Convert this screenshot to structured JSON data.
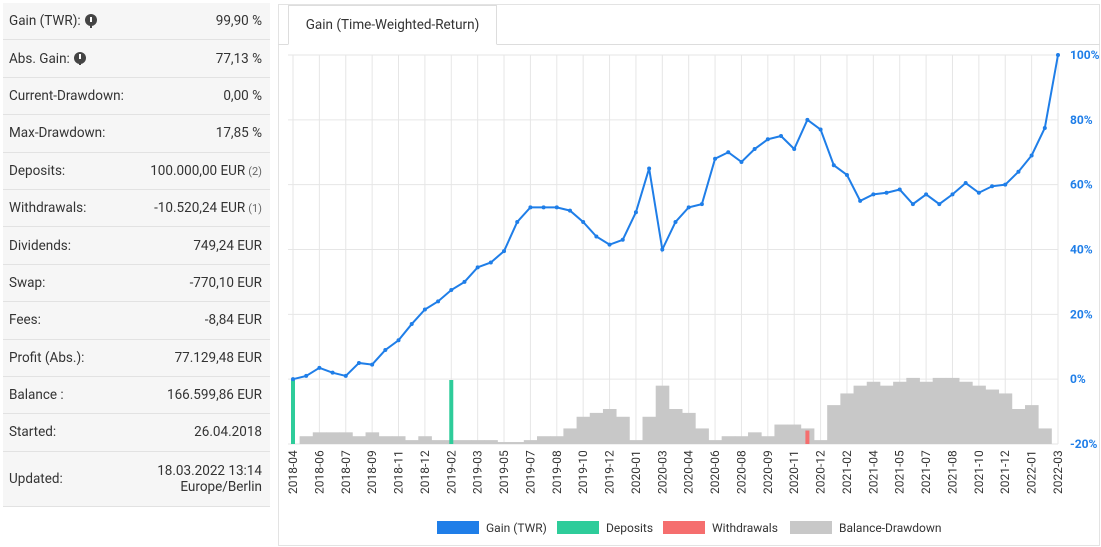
{
  "stats": [
    {
      "label": "Gain (TWR):",
      "value": "99,90 %",
      "info": true
    },
    {
      "label": "Abs. Gain:",
      "value": "77,13 %",
      "info": true
    },
    {
      "label": "Current-Drawdown:",
      "value": "0,00 %"
    },
    {
      "label": "Max-Drawdown:",
      "value": "17,85 %"
    },
    {
      "label": "Deposits:",
      "value": "100.000,00 EUR",
      "count": "(2)"
    },
    {
      "label": "Withdrawals:",
      "value": "-10.520,24 EUR",
      "count": "(1)"
    },
    {
      "label": "Dividends:",
      "value": "749,24 EUR"
    },
    {
      "label": "Swap:",
      "value": "-770,10 EUR"
    },
    {
      "label": "Fees:",
      "value": "-8,84 EUR"
    },
    {
      "label": "Profit (Abs.):",
      "value": "77.129,48 EUR"
    },
    {
      "label": "Balance :",
      "value": "166.599,86 EUR"
    },
    {
      "label": "Started:",
      "value": "26.04.2018"
    },
    {
      "label": "Updated:",
      "value": "18.03.2022 13:14",
      "timezone": "Europe/Berlin"
    }
  ],
  "chart_data": {
    "type": "line",
    "title": "Gain (Time-Weighted-Return)",
    "categories": [
      "2018-04",
      null,
      "2018-06",
      null,
      "2018-07",
      null,
      "2018-09",
      null,
      "2018-11",
      null,
      "2018-12",
      null,
      "2019-02",
      null,
      "2019-03",
      null,
      "2019-05",
      null,
      "2019-07",
      null,
      "2019-08",
      null,
      "2019-10",
      null,
      "2019-12",
      null,
      "2020-01",
      null,
      "2020-03",
      null,
      "2020-04",
      null,
      "2020-06",
      null,
      "2020-08",
      null,
      "2020-09",
      null,
      "2020-11",
      null,
      "2020-12",
      null,
      "2021-02",
      null,
      "2021-04",
      null,
      "2021-05",
      null,
      "2021-07",
      null,
      "2021-08",
      null,
      "2021-10",
      null,
      "2021-12",
      null,
      "2022-01",
      null,
      "2022-03"
    ],
    "series": [
      {
        "name": "Gain (TWR)",
        "type": "line",
        "color": "#1f7ee8",
        "values": [
          0,
          1,
          3.5,
          2,
          1,
          5,
          4.5,
          9,
          12,
          17,
          21.5,
          24,
          27.5,
          30,
          34.5,
          36,
          39.5,
          48.5,
          53,
          53,
          53,
          52,
          48.5,
          44,
          41.5,
          43,
          51.5,
          65,
          40,
          48.5,
          53,
          54,
          68,
          70,
          67,
          71,
          74,
          75,
          71,
          80,
          77,
          66,
          63,
          55,
          57,
          57.5,
          58.5,
          54,
          57,
          54,
          57,
          60.5,
          57.5,
          59.5,
          60,
          64,
          69,
          77.5,
          100
        ]
      },
      {
        "name": "Deposits",
        "type": "bar",
        "axis": "y2",
        "color": "#2ecc9a",
        "values": [
          50000,
          null,
          null,
          null,
          null,
          null,
          null,
          null,
          null,
          null,
          null,
          null,
          50000,
          null,
          null,
          null,
          null,
          null,
          null,
          null,
          null,
          null,
          null,
          null,
          null,
          null,
          null,
          null,
          null,
          null,
          null,
          null,
          null,
          null,
          null,
          null,
          null,
          null,
          null,
          null,
          null,
          null,
          null,
          null,
          null,
          null,
          null,
          null,
          null,
          null,
          null,
          null,
          null,
          null,
          null,
          null,
          null,
          null,
          null
        ]
      },
      {
        "name": "Withdrawals",
        "type": "bar",
        "axis": "y2",
        "color": "#f56e6e",
        "values": [
          null,
          null,
          null,
          null,
          null,
          null,
          null,
          null,
          null,
          null,
          null,
          null,
          null,
          null,
          null,
          null,
          null,
          null,
          null,
          null,
          null,
          null,
          null,
          null,
          null,
          null,
          null,
          null,
          null,
          null,
          null,
          null,
          null,
          null,
          null,
          null,
          null,
          null,
          null,
          10520.24,
          null,
          null,
          null,
          null,
          null,
          null,
          null,
          null,
          null,
          null,
          null,
          null,
          null,
          null,
          null,
          null,
          null,
          null,
          null
        ]
      },
      {
        "name": "Balance-Drawdown",
        "type": "area-bar",
        "axis": "y3",
        "color": "#c8c8c8",
        "values": [
          0,
          2,
          3,
          3,
          3,
          2,
          3,
          2,
          2,
          1,
          2,
          1,
          1,
          1,
          1,
          1,
          0.5,
          0.5,
          1,
          2,
          2,
          4,
          7,
          8,
          9,
          7,
          1,
          7,
          15,
          9,
          8,
          4,
          1,
          2,
          2,
          3,
          2,
          5,
          5,
          4,
          1,
          10,
          13,
          15,
          16,
          15,
          16,
          17,
          16,
          17,
          17,
          16,
          15,
          14,
          13,
          9,
          10,
          4,
          0
        ]
      }
    ],
    "ylim": [
      -20,
      100
    ],
    "yticks": [
      {
        "value": -20,
        "label": "-20%"
      },
      {
        "value": 0,
        "label": "0%"
      },
      {
        "value": 20,
        "label": "20%"
      },
      {
        "value": 40,
        "label": "40%"
      },
      {
        "value": 60,
        "label": "60%"
      },
      {
        "value": 80,
        "label": "80%"
      },
      {
        "value": 100,
        "label": "100%"
      }
    ],
    "y2lim": [
      0,
      50000
    ],
    "y3lim": [
      0,
      18
    ],
    "grid": true,
    "legend": "bottom"
  }
}
